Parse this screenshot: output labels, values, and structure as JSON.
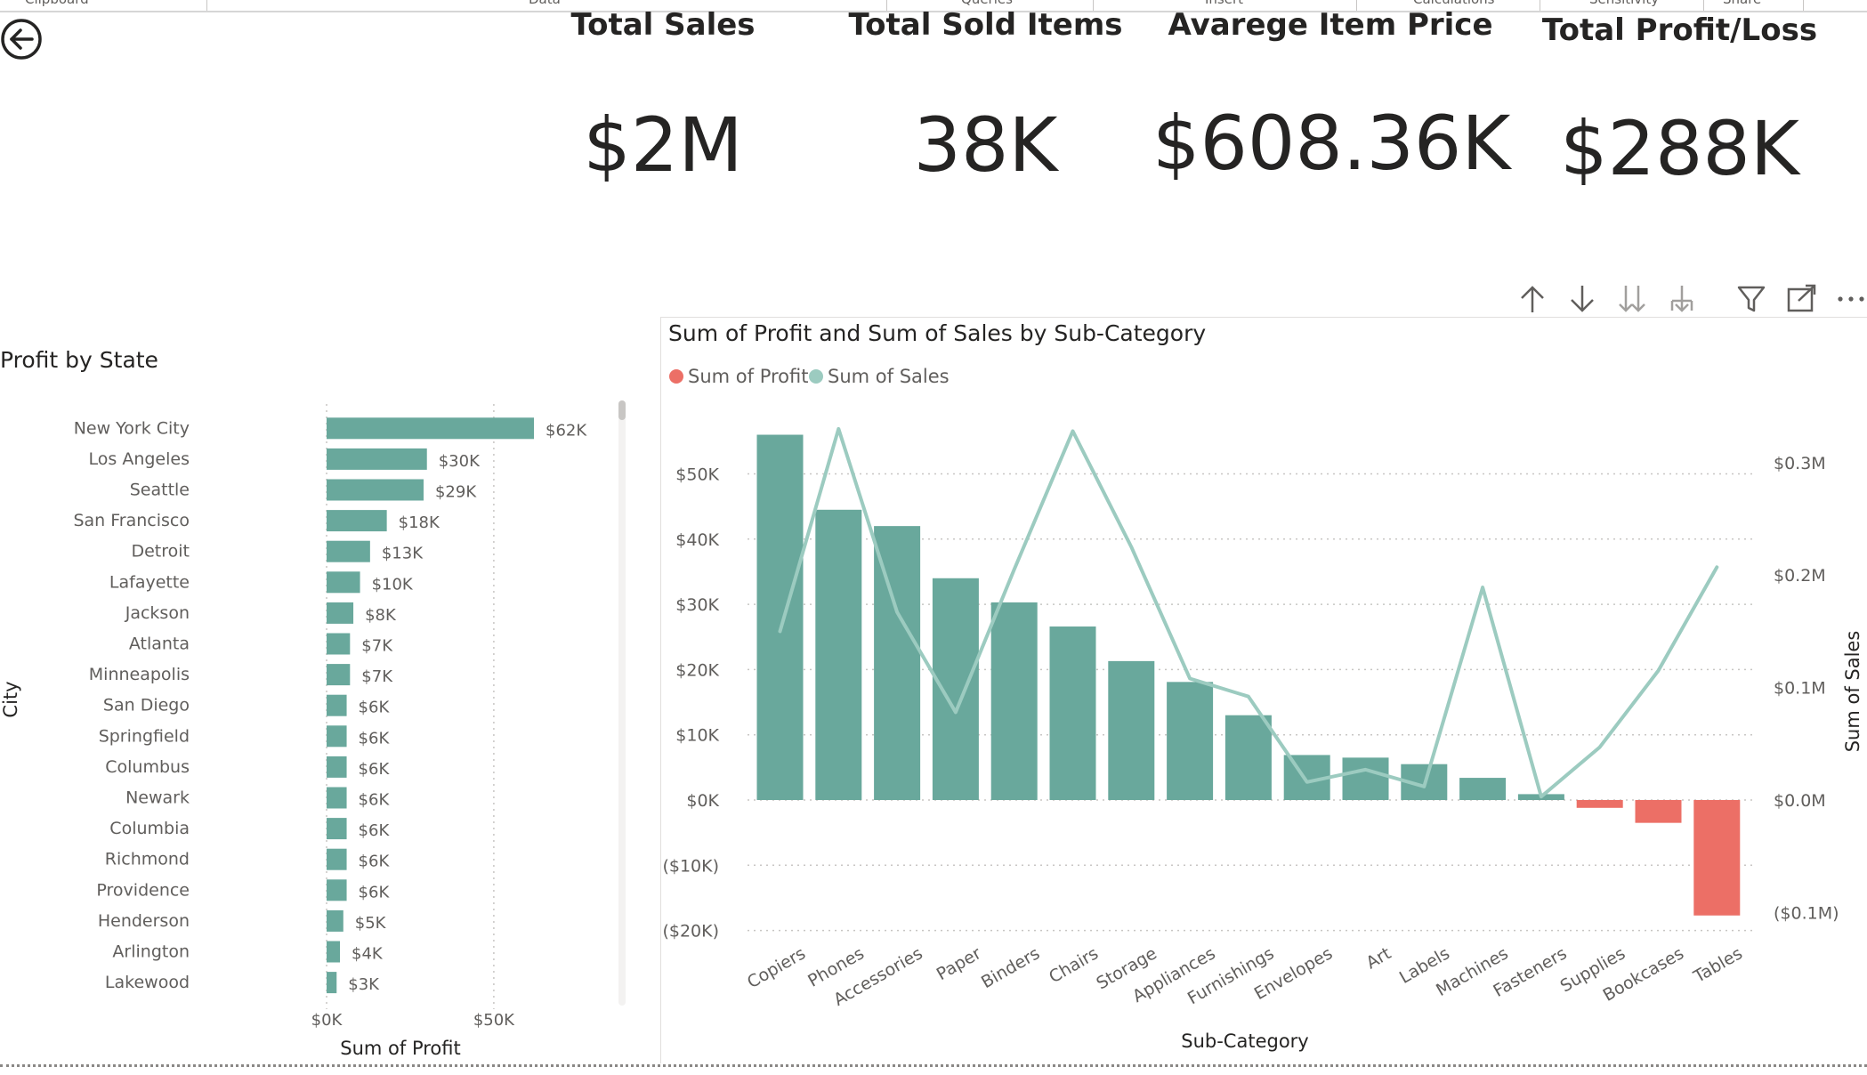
{
  "ribbon": {
    "groups": [
      "Clipboard",
      "Data",
      "Queries",
      "Insert",
      "Calculations",
      "Sensitivity",
      "Share"
    ]
  },
  "kpis": [
    {
      "title": "Total Sales",
      "value": "$2M"
    },
    {
      "title": "Total Sold Items",
      "value": "38K"
    },
    {
      "title": "Avarege Item Price",
      "value": "$608.36K"
    },
    {
      "title": "Total Profit/Loss",
      "value": "$288K"
    }
  ],
  "toolbar": {
    "icons": [
      "drill-up-icon",
      "drill-down-icon",
      "expand-next-level-icon",
      "expand-hierarchy-icon",
      "filter-icon",
      "focus-mode-icon",
      "more-options-icon"
    ]
  },
  "colors": {
    "teal": "#69a89c",
    "red": "#ec6f66",
    "line": "#9ccbc0",
    "text": "#252423",
    "axis": "#605e5c"
  },
  "chart_data": [
    {
      "type": "bar",
      "orientation": "horizontal",
      "title": "Profit by State",
      "xlabel": "Sum of Profit",
      "ylabel": "City",
      "xlim": [
        0,
        62000
      ],
      "x_ticks": [
        {
          "value": 0,
          "label": "$0K"
        },
        {
          "value": 50000,
          "label": "$50K"
        }
      ],
      "categories": [
        "New York City",
        "Los Angeles",
        "Seattle",
        "San Francisco",
        "Detroit",
        "Lafayette",
        "Jackson",
        "Atlanta",
        "Minneapolis",
        "San Diego",
        "Springfield",
        "Columbus",
        "Newark",
        "Columbia",
        "Richmond",
        "Providence",
        "Henderson",
        "Arlington",
        "Lakewood"
      ],
      "values": [
        62000,
        30000,
        29000,
        18000,
        13000,
        10000,
        8000,
        7000,
        7000,
        6000,
        6000,
        6000,
        6000,
        6000,
        6000,
        6000,
        5000,
        4000,
        3000
      ],
      "data_labels": [
        "$62K",
        "$30K",
        "$29K",
        "$18K",
        "$13K",
        "$10K",
        "$8K",
        "$7K",
        "$7K",
        "$6K",
        "$6K",
        "$6K",
        "$6K",
        "$6K",
        "$6K",
        "$6K",
        "$5K",
        "$4K",
        "$3K"
      ],
      "grid": true
    },
    {
      "type": "bar",
      "title": "Sum of Profit and Sum of Sales by Sub-Category",
      "xlabel": "Sub-Category",
      "ylabel_right": "Sum of Sales",
      "legend": [
        {
          "name": "Sum of Profit",
          "color": "#ec6f66"
        },
        {
          "name": "Sum of Sales",
          "color": "#9ccbc0"
        }
      ],
      "legend_position": "top-left",
      "categories": [
        "Copiers",
        "Phones",
        "Accessories",
        "Paper",
        "Binders",
        "Chairs",
        "Storage",
        "Appliances",
        "Furnishings",
        "Envelopes",
        "Art",
        "Labels",
        "Machines",
        "Fasteners",
        "Supplies",
        "Bookcases",
        "Tables"
      ],
      "series": [
        {
          "name": "Sum of Profit",
          "type": "bar",
          "axis": "left",
          "values": [
            56000,
            44500,
            42000,
            34000,
            30300,
            26600,
            21300,
            18100,
            13000,
            6900,
            6500,
            5500,
            3400,
            900,
            -1200,
            -3500,
            -17700
          ]
        },
        {
          "name": "Sum of Sales",
          "type": "line",
          "axis": "right",
          "values": [
            150000,
            330000,
            167000,
            78000,
            205000,
            328000,
            225000,
            108000,
            92000,
            16000,
            27000,
            12000,
            189000,
            3000,
            47000,
            115000,
            207000
          ]
        }
      ],
      "ylim_left": [
        -20000,
        57000
      ],
      "ylim_right": [
        -100000,
        330000
      ],
      "y_ticks_left": [
        {
          "value": 50000,
          "label": "$50K"
        },
        {
          "value": 40000,
          "label": "$40K"
        },
        {
          "value": 30000,
          "label": "$30K"
        },
        {
          "value": 20000,
          "label": "$20K"
        },
        {
          "value": 10000,
          "label": "$10K"
        },
        {
          "value": 0,
          "label": "$0K"
        },
        {
          "value": -10000,
          "label": "($10K)"
        },
        {
          "value": -20000,
          "label": "($20K)"
        }
      ],
      "y_ticks_right": [
        {
          "value": 300000,
          "label": "$0.3M"
        },
        {
          "value": 200000,
          "label": "$0.2M"
        },
        {
          "value": 100000,
          "label": "$0.1M"
        },
        {
          "value": 0,
          "label": "$0.0M"
        },
        {
          "value": -100000,
          "label": "($0.1M)"
        }
      ],
      "grid": true
    }
  ]
}
